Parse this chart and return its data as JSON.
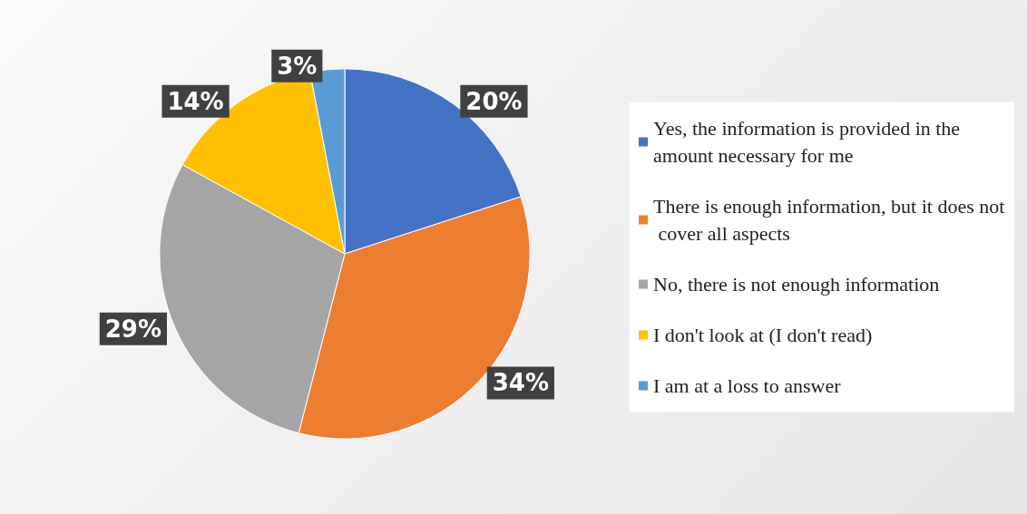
{
  "chart_data": {
    "type": "pie",
    "categories": [
      "Yes, the information is provided in the amount necessary for me",
      "There is enough information, but it does not cover all aspects",
      "No, there is not enough information",
      "I don't look at (I don't read)",
      "I am at a loss to answer"
    ],
    "values": [
      20,
      34,
      29,
      14,
      3
    ],
    "colors": [
      "#4472c4",
      "#ed7d31",
      "#a5a5a5",
      "#ffc000",
      "#5b9bd5"
    ],
    "value_labels": [
      "20%",
      "34%",
      "29%",
      "14%",
      "3%"
    ],
    "legend": "right"
  }
}
